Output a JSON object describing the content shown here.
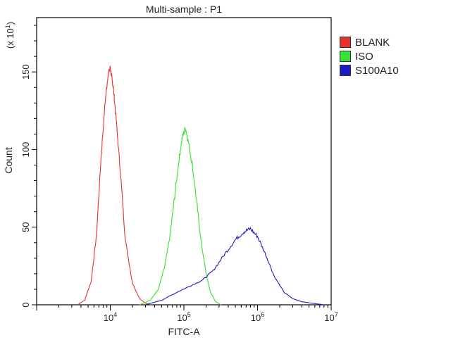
{
  "chart_data": {
    "type": "line",
    "title": "Multi-sample : P1",
    "xlabel": "FITC-A",
    "ylabel": "Count",
    "y_multiplier_label": "(x 10",
    "y_multiplier_exp": "1",
    "x_scale": "log",
    "xlim": [
      1000,
      10000000
    ],
    "ylim": [
      0,
      185
    ],
    "y_ticks": [
      0,
      50,
      100,
      150
    ],
    "x_ticks": [
      {
        "base": "10",
        "exp": "4",
        "value": 10000
      },
      {
        "base": "10",
        "exp": "5",
        "value": 100000
      },
      {
        "base": "10",
        "exp": "6",
        "value": 1000000
      },
      {
        "base": "10",
        "exp": "7",
        "value": 10000000
      }
    ],
    "grid": false,
    "legend_position": "right",
    "series": [
      {
        "name": "BLANK",
        "color": "#e8312a",
        "x": [
          3600,
          4500,
          5500,
          6500,
          7500,
          8500,
          9300,
          10000,
          10500,
          11000,
          12000,
          14000,
          16000,
          20000,
          25000,
          30000,
          36000
        ],
        "y": [
          0,
          3,
          15,
          45,
          95,
          130,
          148,
          153,
          146,
          140,
          120,
          80,
          42,
          14,
          4,
          1,
          0
        ]
      },
      {
        "name": "ISO",
        "color": "#33e233",
        "x": [
          25000,
          35000,
          45000,
          55000,
          65000,
          75000,
          85000,
          95000,
          105000,
          115000,
          130000,
          150000,
          170000,
          200000,
          230000,
          270000,
          320000
        ],
        "y": [
          0,
          3,
          10,
          25,
          45,
          70,
          92,
          108,
          114,
          105,
          90,
          65,
          42,
          20,
          8,
          2,
          0
        ]
      },
      {
        "name": "S100A10",
        "color": "#1c1cc4",
        "x": [
          30000,
          50000,
          80000,
          120000,
          180000,
          250000,
          350000,
          500000,
          650000,
          800000,
          1000000,
          1300000,
          1700000,
          2300000,
          3000000,
          4000000,
          5500000,
          8000000
        ],
        "y": [
          0,
          3,
          8,
          12,
          16,
          22,
          32,
          42,
          47,
          49,
          44,
          32,
          18,
          8,
          4,
          2,
          1,
          0
        ]
      }
    ]
  }
}
